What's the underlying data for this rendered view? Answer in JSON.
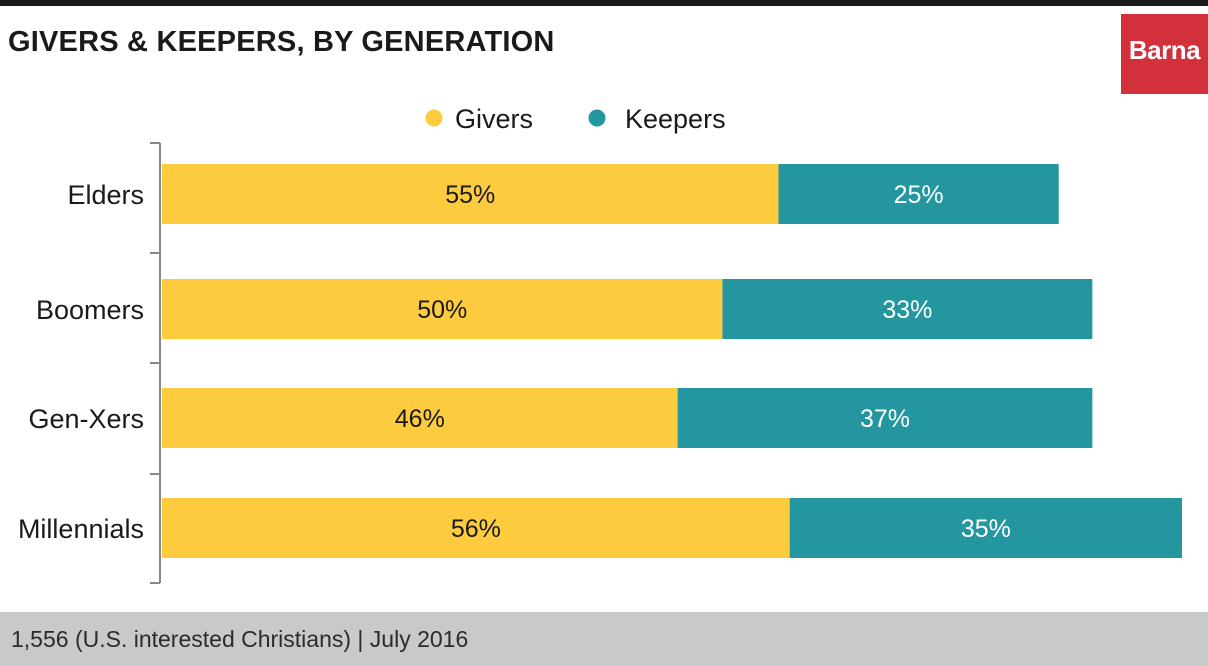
{
  "header": {
    "title": "GIVERS & KEEPERS, BY GENERATION",
    "logo_text": "Barna"
  },
  "colors": {
    "givers": "#fccb3e",
    "keepers": "#2496a0",
    "axis": "#888888",
    "logo": "#d2303a"
  },
  "chart_data": {
    "type": "bar",
    "orientation": "horizontal",
    "stacked": true,
    "categories": [
      "Elders",
      "Boomers",
      "Gen-Xers",
      "Millennials"
    ],
    "series": [
      {
        "name": "Givers",
        "values": [
          55,
          50,
          46,
          56
        ],
        "labels": [
          "55%",
          "50%",
          "46%",
          "56%"
        ]
      },
      {
        "name": "Keepers",
        "values": [
          25,
          33,
          37,
          35
        ],
        "labels": [
          "25%",
          "33%",
          "37%",
          "35%"
        ]
      }
    ],
    "xlim": [
      0,
      91
    ],
    "legend_position": "top-center",
    "grid": false
  },
  "footer": {
    "note": "1,556 (U.S. interested Christians) | July 2016"
  }
}
